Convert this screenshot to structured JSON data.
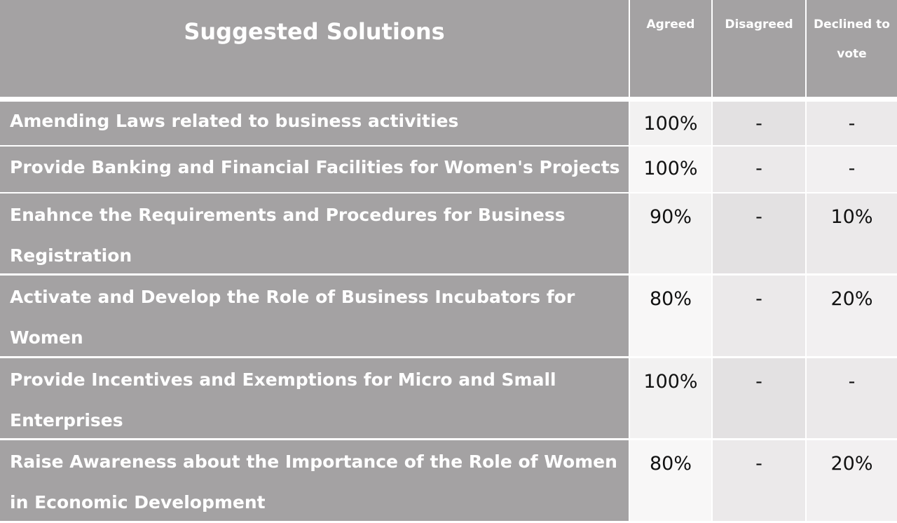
{
  "table": {
    "title": "Suggested Solutions",
    "columns": [
      "Agreed",
      "Disagreed",
      "Declined to vote"
    ],
    "rows": [
      [
        "Amending Laws related to business activities",
        "100%",
        "-",
        "-"
      ],
      [
        "Provide Banking and Financial Facilities for Women's Projects",
        "100%",
        "-",
        "-"
      ],
      [
        "Enahnce the Requirements and Procedures for Business Registration",
        "90%",
        "-",
        "10%"
      ],
      [
        "Activate and Develop the Role of Business Incubators for Women",
        "80%",
        "-",
        "20%"
      ],
      [
        "Provide Incentives and Exemptions for Micro and Small Enterprises",
        "100%",
        "-",
        "-"
      ],
      [
        "Raise Awareness about the Importance of the Role of Women in Economic Development",
        "80%",
        "-",
        "20%"
      ]
    ]
  }
}
